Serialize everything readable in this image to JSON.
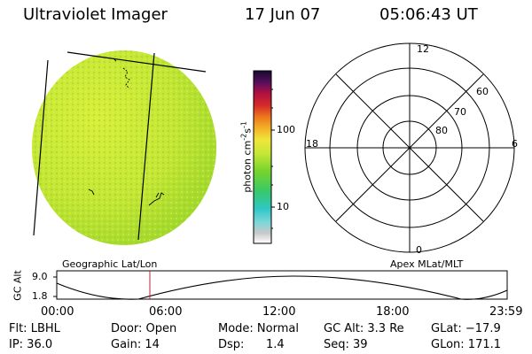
{
  "header": {
    "title": "Ultraviolet Imager",
    "date": "17 Jun 07",
    "time": "05:06:43 UT"
  },
  "colorbar": {
    "unit_label": "photon cm",
    "unit_exp1": "-2",
    "unit_s": "s",
    "unit_exp2": "-1",
    "ticks": [
      "100",
      "10"
    ]
  },
  "polar_plot": {
    "mlt_labels": {
      "top": "12",
      "left": "18",
      "right": "6",
      "bottom": "0"
    },
    "lat_labels": [
      "60",
      "70",
      "80"
    ]
  },
  "timeline": {
    "y_axis_label": "GC Alt",
    "y_ticks": [
      "9.0",
      "1.8"
    ],
    "left_caption": "Geographic Lat/Lon",
    "right_caption": "Apex MLat/MLT",
    "x_ticks": [
      "00:00",
      "06:00",
      "12:00",
      "18:00",
      "23:59"
    ],
    "current_time_fraction": 0.2129
  },
  "status": {
    "row1": {
      "flt": "Flt: LBHL",
      "door": "Door: Open",
      "mode": "Mode: Normal",
      "gc_alt": "GC Alt: 3.3 Re",
      "glat": "GLat: −17.9"
    },
    "row2": {
      "ip": "IP: 36.0",
      "gain": "Gain: 14",
      "dsp_label": "Dsp:",
      "dsp_value": "1.4",
      "seq": "Seq: 39",
      "glon": "GLon: 171.1"
    }
  },
  "colors": {
    "disk_green": "#a9dc2a",
    "disk_yellow": "#d6ec3a",
    "accent_red": "#c02030"
  }
}
